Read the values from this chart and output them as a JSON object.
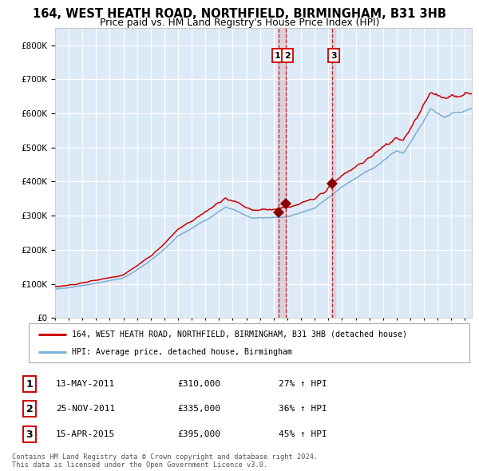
{
  "title1": "164, WEST HEATH ROAD, NORTHFIELD, BIRMINGHAM, B31 3HB",
  "title2": "Price paid vs. HM Land Registry's House Price Index (HPI)",
  "legend_red": "164, WEST HEATH ROAD, NORTHFIELD, BIRMINGHAM, B31 3HB (detached house)",
  "legend_blue": "HPI: Average price, detached house, Birmingham",
  "transactions": [
    {
      "num": 1,
      "date": "13-MAY-2011",
      "price": 310000,
      "hpi_pct": "27% ↑ HPI",
      "x_year": 2011.37
    },
    {
      "num": 2,
      "date": "25-NOV-2011",
      "price": 335000,
      "hpi_pct": "36% ↑ HPI",
      "x_year": 2011.9
    },
    {
      "num": 3,
      "date": "15-APR-2015",
      "price": 395000,
      "hpi_pct": "45% ↑ HPI",
      "x_year": 2015.29
    }
  ],
  "table_rows": [
    [
      1,
      "13-MAY-2011",
      "£310,000",
      "27% ↑ HPI"
    ],
    [
      2,
      "25-NOV-2011",
      "£335,000",
      "36% ↑ HPI"
    ],
    [
      3,
      "15-APR-2015",
      "£395,000",
      "45% ↑ HPI"
    ]
  ],
  "footer": "Contains HM Land Registry data © Crown copyright and database right 2024.\nThis data is licensed under the Open Government Licence v3.0.",
  "ylim": [
    0,
    850000
  ],
  "xlim_start": 1995,
  "xlim_end": 2025.5,
  "plot_bg": "#dce9f7",
  "grid_color": "#ffffff",
  "red_line_color": "#cc0000",
  "blue_line_color": "#7bafd4",
  "vline_color": "#cc0000",
  "marker_color": "#880000"
}
